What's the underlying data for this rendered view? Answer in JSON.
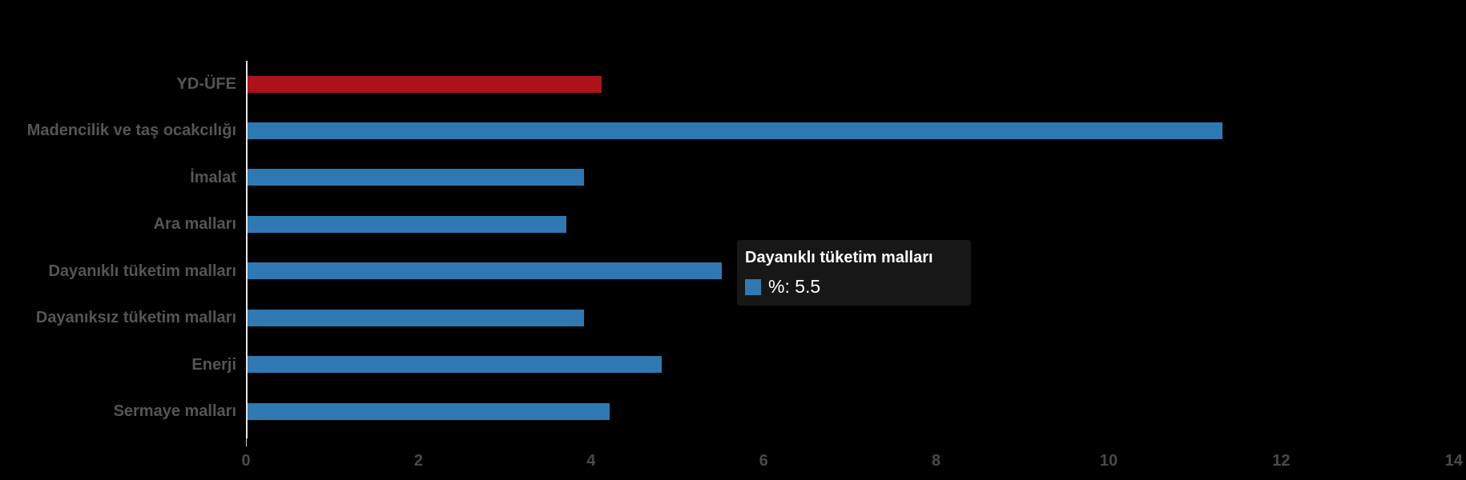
{
  "chart_data": {
    "type": "bar",
    "orientation": "horizontal",
    "title": "",
    "xlabel": "",
    "ylabel": "",
    "series_name": "%",
    "categories": [
      "YD-ÜFE",
      "Madencilik ve taş ocakcılığı",
      "İmalat",
      "Ara malları",
      "Dayanıklı tüketim malları",
      "Dayanıksız tüketim malları",
      "Enerji",
      "Sermaye malları"
    ],
    "values": [
      4.1,
      11.3,
      3.9,
      3.7,
      5.5,
      3.9,
      4.8,
      4.2
    ],
    "bar_colors": [
      "#AC1219",
      "#2F79B3",
      "#2F79B3",
      "#2F79B3",
      "#2F79B3",
      "#2F79B3",
      "#2F79B3",
      "#2F79B3"
    ],
    "xlim": [
      0,
      14
    ],
    "x_ticks": [
      "0",
      "2",
      "4",
      "6",
      "8",
      "10",
      "12",
      "14"
    ],
    "grid": false,
    "legend": "none",
    "background_color": "#000000"
  },
  "tooltip": {
    "title": "Dayanıklı tüketim malları",
    "value_label": "%: 5.5",
    "swatch_color": "#2F79B3",
    "background_color": "#171717"
  },
  "colors": {
    "highlight_bar": "#AC1219",
    "default_bar": "#2F79B3",
    "axis_line": "#E8E8E8",
    "category_label": "#555555",
    "tick_label": "#4A4A4A",
    "tooltip_text": "#FFFFFF"
  }
}
